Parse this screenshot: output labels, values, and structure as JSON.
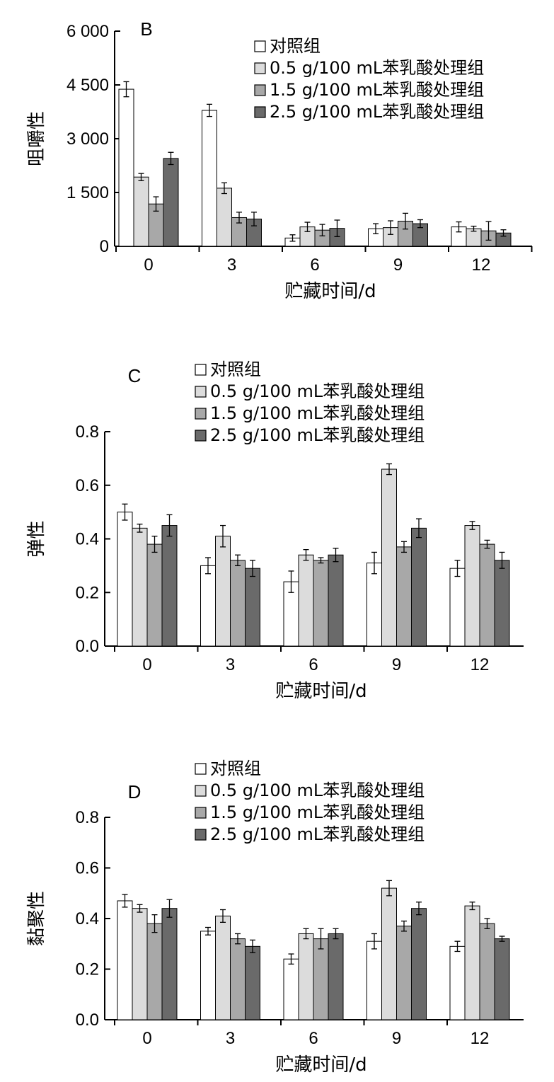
{
  "colors": [
    "#ffffff",
    "#dcdcdc",
    "#a8a8a8",
    "#6a6a6a"
  ],
  "legend": [
    "对照组",
    "0.5 g/100 mL苯乳酸处理组",
    "1.5 g/100 mL苯乳酸处理组",
    "2.5 g/100 mL苯乳酸处理组"
  ],
  "chart_data": [
    {
      "type": "bar",
      "panel_label": "B",
      "title": "",
      "xlabel": "贮藏时间/d",
      "ylabel": "咀嚼性",
      "categories": [
        "0",
        "3",
        "6",
        "9",
        "12"
      ],
      "ylim": [
        0,
        6000
      ],
      "yticks": [
        0,
        1500,
        3000,
        4500,
        6000
      ],
      "ytick_labels": [
        "0",
        "1 500",
        "3 000",
        "4 500",
        "6 000"
      ],
      "legend_placement": "top-right",
      "series": [
        {
          "name": "对照组",
          "values": [
            4380,
            3790,
            230,
            490,
            540
          ],
          "errors": [
            210,
            170,
            90,
            140,
            140
          ]
        },
        {
          "name": "0.5 g/100 mL苯乳酸处理组",
          "values": [
            1930,
            1620,
            540,
            520,
            490
          ],
          "errors": [
            100,
            150,
            130,
            190,
            70
          ]
        },
        {
          "name": "1.5 g/100 mL苯乳酸处理组",
          "values": [
            1180,
            800,
            450,
            700,
            430
          ],
          "errors": [
            200,
            150,
            160,
            220,
            260
          ]
        },
        {
          "name": "2.5 g/100 mL苯乳酸处理组",
          "values": [
            2450,
            760,
            500,
            630,
            370
          ],
          "errors": [
            170,
            190,
            230,
            110,
            90
          ]
        }
      ]
    },
    {
      "type": "bar",
      "panel_label": "C",
      "title": "",
      "xlabel": "贮藏时间/d",
      "ylabel": "弹性",
      "categories": [
        "0",
        "3",
        "6",
        "9",
        "12"
      ],
      "ylim": [
        0,
        0.8
      ],
      "yticks": [
        0,
        0.2,
        0.4,
        0.6,
        0.8
      ],
      "ytick_labels": [
        "0.0",
        "0.2",
        "0.4",
        "0.6",
        "0.8"
      ],
      "legend_placement": "top",
      "series": [
        {
          "name": "对照组",
          "values": [
            0.5,
            0.3,
            0.24,
            0.31,
            0.29
          ],
          "errors": [
            0.03,
            0.03,
            0.04,
            0.04,
            0.03
          ]
        },
        {
          "name": "0.5 g/100 mL苯乳酸处理组",
          "values": [
            0.44,
            0.41,
            0.34,
            0.66,
            0.45
          ],
          "errors": [
            0.015,
            0.04,
            0.02,
            0.02,
            0.015
          ]
        },
        {
          "name": "1.5 g/100 mL苯乳酸处理组",
          "values": [
            0.38,
            0.32,
            0.32,
            0.37,
            0.38
          ],
          "errors": [
            0.03,
            0.02,
            0.01,
            0.02,
            0.015
          ]
        },
        {
          "name": "2.5 g/100 mL苯乳酸处理组",
          "values": [
            0.45,
            0.29,
            0.34,
            0.44,
            0.32
          ],
          "errors": [
            0.04,
            0.03,
            0.025,
            0.035,
            0.03
          ]
        }
      ]
    },
    {
      "type": "bar",
      "panel_label": "D",
      "title": "",
      "xlabel": "贮藏时间/d",
      "ylabel": "黏聚性",
      "categories": [
        "0",
        "3",
        "6",
        "9",
        "12"
      ],
      "ylim": [
        0,
        0.8
      ],
      "yticks": [
        0,
        0.2,
        0.4,
        0.6,
        0.8
      ],
      "ytick_labels": [
        "0.0",
        "0.2",
        "0.4",
        "0.6",
        "0.8"
      ],
      "legend_placement": "top",
      "series": [
        {
          "name": "对照组",
          "values": [
            0.47,
            0.35,
            0.24,
            0.31,
            0.29
          ],
          "errors": [
            0.025,
            0.015,
            0.02,
            0.03,
            0.02
          ]
        },
        {
          "name": "0.5 g/100 mL苯乳酸处理组",
          "values": [
            0.44,
            0.41,
            0.34,
            0.52,
            0.45
          ],
          "errors": [
            0.015,
            0.025,
            0.02,
            0.03,
            0.015
          ]
        },
        {
          "name": "1.5 g/100 mL苯乳酸处理组",
          "values": [
            0.38,
            0.32,
            0.32,
            0.37,
            0.38
          ],
          "errors": [
            0.035,
            0.02,
            0.04,
            0.02,
            0.02
          ]
        },
        {
          "name": "2.5 g/100 mL苯乳酸处理组",
          "values": [
            0.44,
            0.29,
            0.34,
            0.44,
            0.32
          ],
          "errors": [
            0.035,
            0.025,
            0.02,
            0.025,
            0.01
          ]
        }
      ]
    }
  ]
}
